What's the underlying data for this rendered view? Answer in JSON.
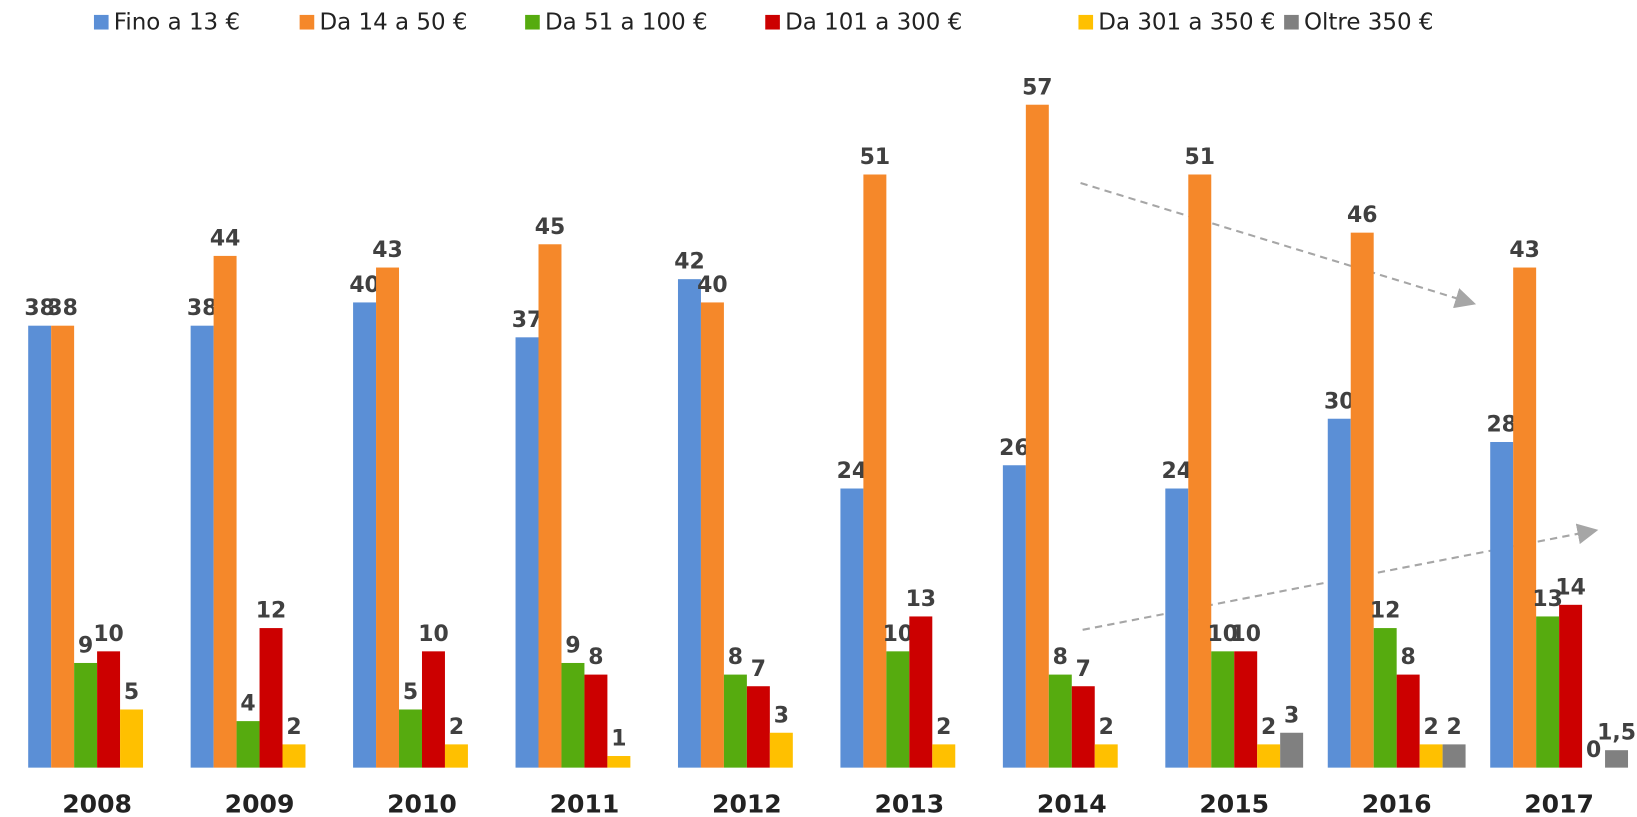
{
  "chart_data": {
    "type": "bar",
    "categories": [
      "2008",
      "2009",
      "2010",
      "2011",
      "2012",
      "2013",
      "2014",
      "2015",
      "2016",
      "2017"
    ],
    "series": [
      {
        "name": "Fino a 13 €",
        "color": "#5b8fd6",
        "values": [
          38,
          38,
          40,
          37,
          42,
          24,
          26,
          24,
          30,
          28
        ]
      },
      {
        "name": "Da 14 a 50 €",
        "color": "#f5882a",
        "values": [
          38,
          44,
          43,
          45,
          40,
          51,
          57,
          51,
          46,
          43
        ]
      },
      {
        "name": "Da 51 a 100 €",
        "color": "#56ab0f",
        "values": [
          9,
          4,
          5,
          9,
          8,
          10,
          8,
          10,
          12,
          13
        ]
      },
      {
        "name": "Da 101 a 300 €",
        "color": "#cc0000",
        "values": [
          10,
          12,
          10,
          8,
          7,
          13,
          7,
          10,
          8,
          14
        ]
      },
      {
        "name": "Da 301 a 350 €",
        "color": "#ffc000",
        "values": [
          5,
          2,
          2,
          1,
          3,
          2,
          2,
          2,
          2,
          0
        ]
      },
      {
        "name": "Oltre 350 €",
        "color": "#808080",
        "values": [
          null,
          null,
          null,
          null,
          null,
          null,
          null,
          3,
          2,
          1.5
        ],
        "value_labels": [
          null,
          null,
          null,
          null,
          null,
          null,
          null,
          "3",
          "2",
          "1,5"
        ]
      }
    ],
    "ylim": [
      0,
      60
    ]
  }
}
